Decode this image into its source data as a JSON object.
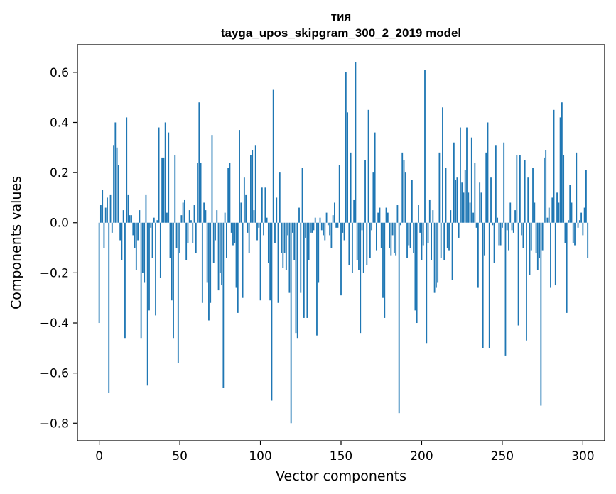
{
  "chart_data": {
    "type": "bar",
    "title": "тия",
    "subtitle": "tayga_upos_skipgram_300_2_2019 model",
    "xlabel": "Vector components",
    "ylabel": "Components values",
    "xlim": [
      -13.5,
      313.5
    ],
    "ylim": [
      -0.87,
      0.71
    ],
    "x_ticks": [
      0,
      50,
      100,
      150,
      200,
      250,
      300
    ],
    "y_ticks": [
      -0.8,
      -0.6,
      -0.4,
      -0.2,
      0.0,
      0.2,
      0.4,
      0.6
    ],
    "x_tick_labels": [
      "0",
      "50",
      "100",
      "150",
      "200",
      "250",
      "300"
    ],
    "y_tick_labels": [
      "−0.8",
      "−0.6",
      "−0.4",
      "−0.2",
      "0.0",
      "0.2",
      "0.4",
      "0.6"
    ],
    "bar_color": "#1f77b4",
    "values": [
      -0.4,
      0.07,
      0.13,
      -0.1,
      0.06,
      0.1,
      -0.68,
      0.11,
      -0.04,
      0.31,
      0.4,
      0.3,
      0.23,
      -0.07,
      -0.15,
      0.05,
      -0.46,
      0.42,
      0.11,
      0.03,
      0.03,
      -0.05,
      -0.1,
      -0.19,
      -0.07,
      0.05,
      -0.46,
      -0.2,
      -0.24,
      0.11,
      -0.65,
      -0.35,
      -0.02,
      -0.14,
      0.02,
      -0.37,
      0.01,
      0.38,
      -0.22,
      0.26,
      0.26,
      0.4,
      0.04,
      0.36,
      -0.14,
      -0.31,
      -0.46,
      0.27,
      -0.1,
      -0.56,
      -0.12,
      0.03,
      0.08,
      0.09,
      -0.15,
      -0.08,
      0.05,
      0.01,
      -0.08,
      0.07,
      -0.12,
      0.24,
      0.48,
      0.24,
      -0.32,
      0.08,
      0.05,
      -0.24,
      -0.39,
      -0.32,
      0.35,
      -0.16,
      -0.07,
      0.05,
      -0.27,
      -0.2,
      -0.25,
      -0.66,
      0.04,
      -0.14,
      0.22,
      0.24,
      -0.04,
      -0.09,
      -0.08,
      -0.26,
      -0.36,
      0.37,
      0.08,
      -0.3,
      0.18,
      0.11,
      -0.04,
      -0.12,
      0.27,
      0.29,
      0.05,
      0.31,
      -0.07,
      -0.02,
      -0.31,
      0.14,
      -0.05,
      0.14,
      0.02,
      -0.16,
      -0.31,
      -0.71,
      0.53,
      -0.08,
      0.1,
      -0.32,
      0.2,
      -0.12,
      -0.18,
      -0.12,
      -0.19,
      -0.05,
      -0.28,
      -0.8,
      -0.04,
      -0.15,
      -0.44,
      -0.46,
      0.06,
      -0.28,
      0.22,
      -0.38,
      -0.06,
      -0.38,
      -0.15,
      -0.04,
      -0.04,
      -0.03,
      0.02,
      -0.45,
      -0.24,
      0.02,
      -0.03,
      -0.05,
      -0.07,
      0.04,
      -0.01,
      -0.05,
      -0.1,
      0.03,
      0.08,
      -0.02,
      -0.02,
      0.23,
      -0.29,
      -0.04,
      -0.07,
      0.6,
      0.44,
      -0.17,
      0.28,
      -0.2,
      0.09,
      0.64,
      -0.15,
      -0.19,
      -0.44,
      -0.03,
      -0.2,
      0.25,
      -0.17,
      0.45,
      -0.14,
      -0.03,
      0.2,
      0.36,
      -0.11,
      0.04,
      0.06,
      -0.1,
      -0.3,
      -0.38,
      0.06,
      0.04,
      -0.1,
      -0.13,
      -0.05,
      -0.12,
      -0.13,
      0.07,
      -0.76,
      -0.01,
      0.28,
      0.25,
      0.2,
      -0.14,
      -0.09,
      -0.1,
      0.17,
      -0.12,
      -0.35,
      -0.4,
      0.07,
      -0.04,
      -0.15,
      -0.09,
      0.61,
      -0.48,
      -0.08,
      0.09,
      -0.15,
      0.05,
      -0.28,
      -0.26,
      -0.24,
      0.28,
      -0.14,
      0.46,
      -0.15,
      0.22,
      -0.1,
      -0.11,
      0.05,
      -0.23,
      0.32,
      0.17,
      0.18,
      -0.06,
      0.38,
      0.16,
      0.12,
      0.21,
      0.38,
      0.12,
      0.08,
      0.34,
      0.04,
      0.24,
      -0.02,
      -0.26,
      0.16,
      0.12,
      -0.5,
      -0.13,
      0.28,
      0.4,
      -0.5,
      0.18,
      -0.01,
      -0.16,
      0.31,
      0.02,
      -0.09,
      -0.09,
      -0.02,
      0.32,
      -0.53,
      -0.03,
      -0.11,
      0.08,
      -0.03,
      -0.04,
      0.05,
      0.27,
      -0.41,
      0.27,
      -0.05,
      -0.1,
      0.25,
      -0.47,
      0.18,
      -0.21,
      -0.11,
      0.22,
      0.08,
      -0.12,
      -0.19,
      -0.14,
      -0.73,
      -0.11,
      0.26,
      0.29,
      0.02,
      0.06,
      -0.26,
      0.1,
      0.45,
      -0.25,
      0.12,
      0.08,
      0.42,
      0.48,
      0.27,
      -0.08,
      -0.36,
      0.01,
      0.15,
      0.08,
      -0.08,
      -0.09,
      0.28,
      -0.02,
      0.01,
      0.04,
      -0.05,
      0.06,
      0.21,
      -0.14
    ]
  }
}
